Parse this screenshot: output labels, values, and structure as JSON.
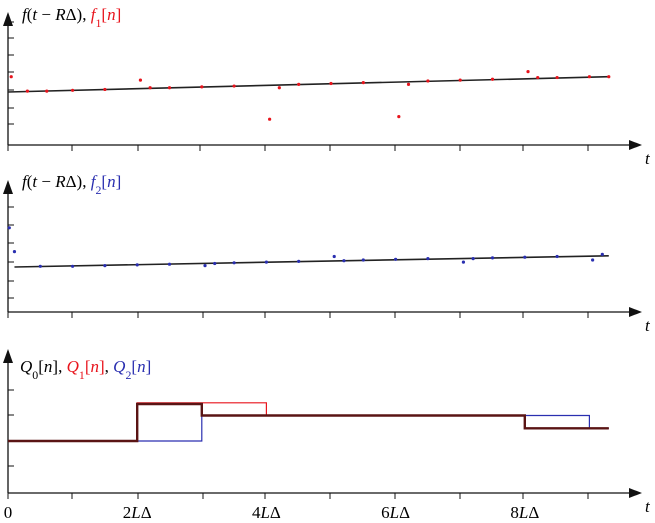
{
  "chart_data": [
    {
      "type": "scatter",
      "panel": "top",
      "title_parts": [
        {
          "text": "f",
          "italic": true,
          "color": "#000000"
        },
        {
          "text": "(",
          "italic": false,
          "color": "#000000"
        },
        {
          "text": "t",
          "italic": true,
          "color": "#000000"
        },
        {
          "text": " − ",
          "italic": false,
          "color": "#000000"
        },
        {
          "text": "R",
          "italic": true,
          "color": "#000000"
        },
        {
          "text": "Δ), ",
          "italic": false,
          "color": "#000000"
        },
        {
          "text": "f",
          "italic": true,
          "color": "#e8141c"
        },
        {
          "text": "1",
          "italic": false,
          "color": "#e8141c",
          "sub": true
        },
        {
          "text": "[",
          "italic": false,
          "color": "#e8141c"
        },
        {
          "text": "n",
          "italic": true,
          "color": "#e8141c"
        },
        {
          "text": "]",
          "italic": false,
          "color": "#e8141c"
        }
      ],
      "xlabel": "t",
      "xlim": [
        0,
        10
      ],
      "ylim": [
        -2,
        3
      ],
      "series": [
        {
          "role": "reference",
          "color": "#222222",
          "x": [
            0,
            9.3
          ],
          "y": [
            0,
            0.9
          ]
        },
        {
          "role": "samples",
          "color": "#e8141c",
          "x": [
            0.05,
            0.3,
            0.6,
            1.0,
            1.5,
            2.05,
            2.2,
            2.5,
            3.0,
            3.5,
            4.05,
            4.2,
            4.5,
            5.0,
            5.5,
            6.05,
            6.2,
            6.5,
            7.0,
            7.5,
            8.05,
            8.2,
            8.5,
            9.0,
            9.3
          ],
          "y": [
            0.9,
            0.05,
            0.05,
            0.1,
            0.15,
            0.7,
            0.25,
            0.25,
            0.3,
            0.35,
            -1.6,
            0.25,
            0.45,
            0.5,
            0.55,
            -1.45,
            0.45,
            0.65,
            0.7,
            0.75,
            1.2,
            0.85,
            0.85,
            0.9,
            0.9
          ]
        }
      ],
      "color": "#e8141c"
    },
    {
      "type": "scatter",
      "panel": "middle",
      "title_parts": [
        {
          "text": "f",
          "italic": true,
          "color": "#000000"
        },
        {
          "text": "(",
          "italic": false,
          "color": "#000000"
        },
        {
          "text": "t",
          "italic": true,
          "color": "#000000"
        },
        {
          "text": " − ",
          "italic": false,
          "color": "#000000"
        },
        {
          "text": "R",
          "italic": true,
          "color": "#000000"
        },
        {
          "text": "Δ), ",
          "italic": false,
          "color": "#000000"
        },
        {
          "text": "f",
          "italic": true,
          "color": "#2a2fb0"
        },
        {
          "text": "2",
          "italic": false,
          "color": "#2a2fb0",
          "sub": true
        },
        {
          "text": "[",
          "italic": false,
          "color": "#2a2fb0"
        },
        {
          "text": "n",
          "italic": true,
          "color": "#2a2fb0"
        },
        {
          "text": "]",
          "italic": false,
          "color": "#2a2fb0"
        }
      ],
      "xlabel": "t",
      "xlim": [
        0,
        10
      ],
      "ylim": [
        -2,
        3
      ],
      "series": [
        {
          "role": "reference",
          "color": "#222222",
          "x": [
            0.1,
            9.3
          ],
          "y": [
            0,
            0.8
          ]
        },
        {
          "role": "samples",
          "color": "#2a2fb0",
          "x": [
            0.02,
            0.1,
            0.5,
            1.0,
            1.5,
            2.0,
            2.5,
            3.05,
            3.2,
            3.5,
            4.0,
            4.5,
            5.05,
            5.2,
            5.5,
            6.0,
            6.5,
            7.05,
            7.2,
            7.5,
            8.0,
            8.5,
            9.05,
            9.2
          ],
          "y": [
            2.8,
            1.1,
            0.05,
            0.05,
            0.1,
            0.15,
            0.2,
            0.1,
            0.25,
            0.3,
            0.35,
            0.4,
            0.75,
            0.45,
            0.5,
            0.55,
            0.6,
            0.35,
            0.6,
            0.65,
            0.7,
            0.75,
            0.5,
            0.9
          ]
        }
      ],
      "color": "#2a2fb0"
    },
    {
      "type": "line",
      "panel": "bottom",
      "title_parts": [
        {
          "text": "Q",
          "italic": true,
          "color": "#000000"
        },
        {
          "text": "0",
          "italic": false,
          "color": "#000000",
          "sub": true
        },
        {
          "text": "[",
          "italic": false,
          "color": "#000000"
        },
        {
          "text": "n",
          "italic": true,
          "color": "#000000"
        },
        {
          "text": "], ",
          "italic": false,
          "color": "#000000"
        },
        {
          "text": "Q",
          "italic": true,
          "color": "#e8141c"
        },
        {
          "text": "1",
          "italic": false,
          "color": "#e8141c",
          "sub": true
        },
        {
          "text": "[",
          "italic": false,
          "color": "#e8141c"
        },
        {
          "text": "n",
          "italic": true,
          "color": "#e8141c"
        },
        {
          "text": "]",
          "italic": false,
          "color": "#e8141c"
        },
        {
          "text": ", ",
          "italic": false,
          "color": "#000000"
        },
        {
          "text": "Q",
          "italic": true,
          "color": "#2a2fb0"
        },
        {
          "text": "2",
          "italic": false,
          "color": "#2a2fb0",
          "sub": true
        },
        {
          "text": "[",
          "italic": false,
          "color": "#2a2fb0"
        },
        {
          "text": "n",
          "italic": true,
          "color": "#2a2fb0"
        },
        {
          "text": "]",
          "italic": false,
          "color": "#2a2fb0"
        }
      ],
      "xlabel": "t",
      "xlim": [
        0,
        10
      ],
      "ylim": [
        0,
        4
      ],
      "xticks": [
        0,
        2,
        4,
        6,
        8
      ],
      "xtick_labels": [
        [
          {
            "text": "0",
            "italic": false
          }
        ],
        [
          {
            "text": "2",
            "italic": false
          },
          {
            "text": "L",
            "italic": true
          },
          {
            "text": "Δ",
            "italic": false
          }
        ],
        [
          {
            "text": "4",
            "italic": false
          },
          {
            "text": "L",
            "italic": true
          },
          {
            "text": "Δ",
            "italic": false
          }
        ],
        [
          {
            "text": "6",
            "italic": false
          },
          {
            "text": "L",
            "italic": true
          },
          {
            "text": "Δ",
            "italic": false
          }
        ],
        [
          {
            "text": "8",
            "italic": false
          },
          {
            "text": "L",
            "italic": true
          },
          {
            "text": "Δ",
            "italic": false
          }
        ]
      ],
      "series": [
        {
          "name": "Q1",
          "color": "#e8141c",
          "width": 1.2,
          "x": [
            0,
            2,
            2,
            4,
            4,
            8,
            8,
            9.3
          ],
          "y": [
            2,
            2,
            3.5,
            3.5,
            3,
            3,
            2.5,
            2.5
          ]
        },
        {
          "name": "Q2",
          "color": "#2a2fb0",
          "width": 1.2,
          "x": [
            0,
            3,
            3,
            9,
            9,
            9.3
          ],
          "y": [
            2,
            2,
            3,
            3,
            2.5,
            2.5
          ]
        },
        {
          "name": "Q0",
          "color": "#5a1414",
          "width": 2.4,
          "x": [
            0,
            2,
            2,
            3,
            3,
            8,
            8,
            9.3
          ],
          "y": [
            2,
            2,
            3.45,
            3.45,
            3,
            3,
            2.5,
            2.5
          ]
        }
      ]
    }
  ]
}
